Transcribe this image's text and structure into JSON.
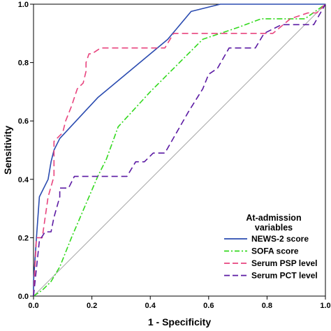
{
  "chart_data": {
    "type": "line",
    "title": "",
    "xlabel": "1 - Specificity",
    "ylabel": "Sensitivity",
    "xlim": [
      0,
      1
    ],
    "ylim": [
      0,
      1
    ],
    "x_ticks": [
      "0.0",
      "0.2",
      "0.4",
      "0.6",
      "0.8",
      "1.0"
    ],
    "y_ticks": [
      "0.0",
      "0.2",
      "0.4",
      "0.6",
      "0.8",
      "1.0"
    ],
    "grid": false,
    "legend": {
      "title_line1": "At-admission",
      "title_line2": "variables",
      "placement": "bottom-right"
    },
    "series": [
      {
        "name": "NEWS-2 score",
        "color": "#2a4bb0",
        "dash": "solid",
        "points": [
          [
            0,
            0
          ],
          [
            0,
            0.05
          ],
          [
            0.01,
            0.2
          ],
          [
            0.02,
            0.34
          ],
          [
            0.05,
            0.4
          ],
          [
            0.06,
            0.46
          ],
          [
            0.07,
            0.5
          ],
          [
            0.09,
            0.54
          ],
          [
            0.22,
            0.68
          ],
          [
            0.46,
            0.88
          ],
          [
            0.54,
            0.975
          ],
          [
            0.64,
            1.0
          ],
          [
            1.0,
            1.0
          ]
        ]
      },
      {
        "name": "SOFA score",
        "color": "#33d91e",
        "dash": "dashdot",
        "points": [
          [
            0,
            0
          ],
          [
            0.03,
            0.02
          ],
          [
            0.06,
            0.05
          ],
          [
            0.09,
            0.1
          ],
          [
            0.13,
            0.2
          ],
          [
            0.22,
            0.41
          ],
          [
            0.25,
            0.47
          ],
          [
            0.29,
            0.58
          ],
          [
            0.4,
            0.7
          ],
          [
            0.5,
            0.8
          ],
          [
            0.58,
            0.88
          ],
          [
            0.7,
            0.92
          ],
          [
            0.78,
            0.95
          ],
          [
            0.93,
            0.95
          ],
          [
            1.0,
            1.0
          ]
        ]
      },
      {
        "name": "Serum PSP level",
        "color": "#e8447e",
        "dash": "dashed",
        "points": [
          [
            0,
            0
          ],
          [
            0.01,
            0.2
          ],
          [
            0.03,
            0.2
          ],
          [
            0.04,
            0.27
          ],
          [
            0.05,
            0.34
          ],
          [
            0.07,
            0.41
          ],
          [
            0.07,
            0.53
          ],
          [
            0.1,
            0.56
          ],
          [
            0.11,
            0.6
          ],
          [
            0.13,
            0.65
          ],
          [
            0.15,
            0.71
          ],
          [
            0.17,
            0.73
          ],
          [
            0.18,
            0.77
          ],
          [
            0.18,
            0.8
          ],
          [
            0.19,
            0.83
          ],
          [
            0.2,
            0.83
          ],
          [
            0.23,
            0.85
          ],
          [
            0.45,
            0.85
          ],
          [
            0.48,
            0.9
          ],
          [
            0.82,
            0.9
          ],
          [
            0.88,
            0.95
          ],
          [
            0.94,
            0.97
          ],
          [
            0.97,
            0.97
          ],
          [
            1.0,
            1.0
          ]
        ]
      },
      {
        "name": "Serum PCT level",
        "color": "#5b1aa3",
        "dash": "dashed",
        "points": [
          [
            0,
            0
          ],
          [
            0.02,
            0.19
          ],
          [
            0.04,
            0.22
          ],
          [
            0.06,
            0.22
          ],
          [
            0.07,
            0.27
          ],
          [
            0.09,
            0.34
          ],
          [
            0.09,
            0.37
          ],
          [
            0.12,
            0.37
          ],
          [
            0.14,
            0.41
          ],
          [
            0.32,
            0.41
          ],
          [
            0.35,
            0.46
          ],
          [
            0.38,
            0.46
          ],
          [
            0.41,
            0.49
          ],
          [
            0.45,
            0.49
          ],
          [
            0.53,
            0.63
          ],
          [
            0.58,
            0.71
          ],
          [
            0.6,
            0.76
          ],
          [
            0.63,
            0.78
          ],
          [
            0.67,
            0.85
          ],
          [
            0.76,
            0.85
          ],
          [
            0.79,
            0.9
          ],
          [
            0.85,
            0.93
          ],
          [
            0.96,
            0.93
          ],
          [
            1.0,
            1.0
          ]
        ]
      }
    ]
  }
}
